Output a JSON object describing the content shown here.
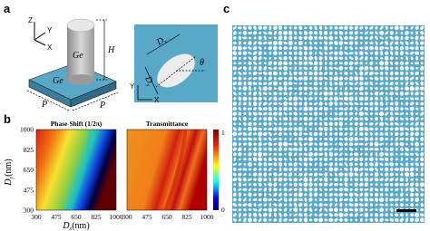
{
  "panels": {
    "a": "a",
    "b": "b",
    "c": "c"
  },
  "panel_a": {
    "axes": {
      "z": "Z",
      "y": "Y",
      "x": "X"
    },
    "pillar_material": "Ge",
    "substrate_material": "Ge",
    "height": "H",
    "period_x": "P",
    "period_y": "P",
    "top_view": {
      "dx": "D",
      "dx_sub": "x",
      "dy": "D",
      "dy_sub": "y",
      "angle": "θ",
      "y_axis": "Y",
      "x_axis": "X"
    }
  },
  "panel_b": {
    "maps": [
      {
        "title": "Phase Shift (1/2π)"
      },
      {
        "title": "Transmittance"
      }
    ],
    "y_label": {
      "main": "D",
      "sub": "y",
      "unit": "(nm)"
    },
    "x_label": {
      "main": "D",
      "sub": "x",
      "unit": "(nm)"
    },
    "yticks": [
      "1000",
      "825",
      "650",
      "475",
      "300"
    ],
    "xticks": [
      "300",
      "475",
      "650",
      "825",
      "1000"
    ],
    "colorbar": {
      "max": "1",
      "min": "0"
    }
  }
}
